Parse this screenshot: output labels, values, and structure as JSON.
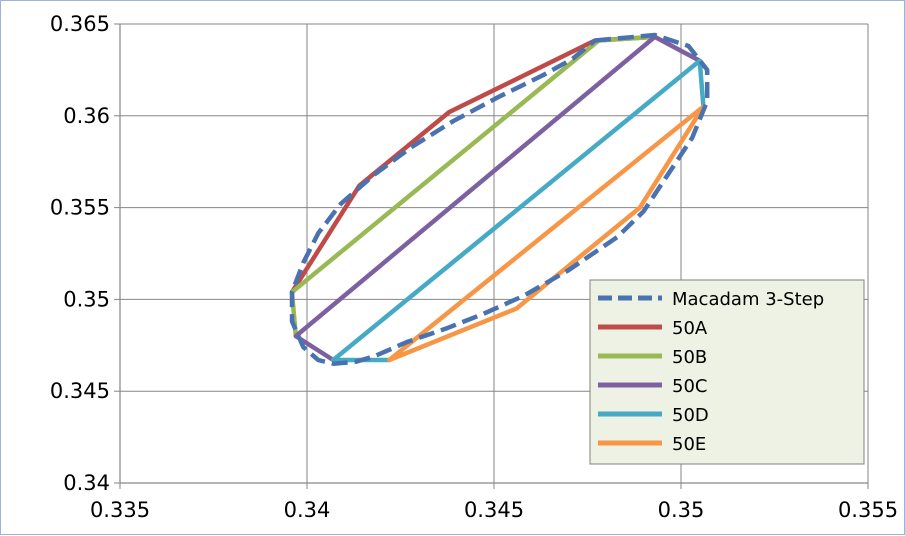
{
  "chart_data": {
    "type": "line",
    "title": "",
    "xlabel": "",
    "ylabel": "",
    "xlim": [
      0.335,
      0.355
    ],
    "ylim": [
      0.34,
      0.365
    ],
    "x_ticks": [
      "0.335",
      "0.34",
      "0.345",
      "0.35",
      "0.355"
    ],
    "y_ticks": [
      "0.34",
      "0.345",
      "0.35",
      "0.355",
      "0.36",
      "0.365"
    ],
    "grid": true,
    "legend_position": "bottom-right",
    "series": [
      {
        "name": "Macadam 3-Step",
        "color": "#4a72b0",
        "dashed": true,
        "points": [
          [
            0.3477,
            0.3641
          ],
          [
            0.3493,
            0.3644
          ],
          [
            0.3502,
            0.3638
          ],
          [
            0.3507,
            0.3625
          ],
          [
            0.3507,
            0.3608
          ],
          [
            0.3503,
            0.3588
          ],
          [
            0.349,
            0.3548
          ],
          [
            0.3483,
            0.3534
          ],
          [
            0.347,
            0.3516
          ],
          [
            0.3458,
            0.3502
          ],
          [
            0.3447,
            0.3492
          ],
          [
            0.3437,
            0.3484
          ],
          [
            0.3427,
            0.3477
          ],
          [
            0.3418,
            0.3469
          ],
          [
            0.3413,
            0.3466
          ],
          [
            0.3407,
            0.3465
          ],
          [
            0.3403,
            0.3467
          ],
          [
            0.3399,
            0.3474
          ],
          [
            0.3396,
            0.3488
          ],
          [
            0.3396,
            0.3504
          ],
          [
            0.3399,
            0.352
          ],
          [
            0.3403,
            0.3536
          ],
          [
            0.3409,
            0.3552
          ],
          [
            0.3418,
            0.3568
          ],
          [
            0.3428,
            0.3583
          ],
          [
            0.3439,
            0.3597
          ],
          [
            0.3451,
            0.361
          ],
          [
            0.3463,
            0.3622
          ],
          [
            0.3471,
            0.3631
          ],
          [
            0.3477,
            0.3641
          ]
        ]
      },
      {
        "name": "50A",
        "color": "#be4b48",
        "points": [
          [
            0.3396,
            0.3504
          ],
          [
            0.3414,
            0.3562
          ],
          [
            0.3438,
            0.3602
          ],
          [
            0.3477,
            0.3641
          ],
          [
            0.3493,
            0.3643
          ]
        ]
      },
      {
        "name": "50B",
        "color": "#98b954",
        "points": [
          [
            0.3397,
            0.348
          ],
          [
            0.3396,
            0.3504
          ],
          [
            0.3478,
            0.3641
          ],
          [
            0.3493,
            0.3643
          ]
        ]
      },
      {
        "name": "50C",
        "color": "#7d60a0",
        "points": [
          [
            0.3407,
            0.3467
          ],
          [
            0.3397,
            0.348
          ],
          [
            0.3493,
            0.3643
          ],
          [
            0.3505,
            0.363
          ]
        ]
      },
      {
        "name": "50D",
        "color": "#46aac5",
        "points": [
          [
            0.3422,
            0.3467
          ],
          [
            0.3407,
            0.3467
          ],
          [
            0.3505,
            0.363
          ],
          [
            0.3506,
            0.3605
          ]
        ]
      },
      {
        "name": "50E",
        "color": "#f79646",
        "points": [
          [
            0.3422,
            0.3467
          ],
          [
            0.3456,
            0.3495
          ],
          [
            0.3489,
            0.355
          ],
          [
            0.3506,
            0.3605
          ],
          [
            0.3422,
            0.3467
          ]
        ]
      }
    ]
  }
}
